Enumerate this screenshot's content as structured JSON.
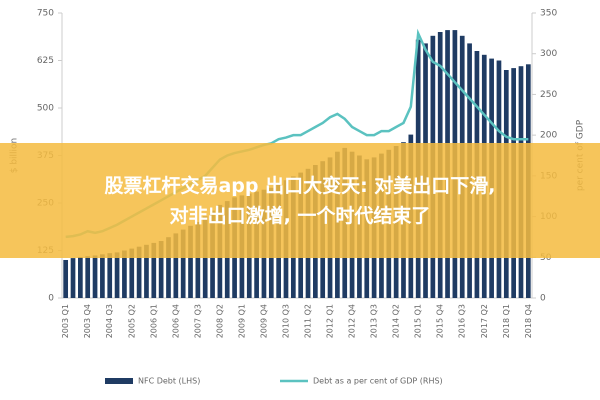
{
  "chart_data": {
    "type": "bar-line",
    "ylabel": "$ billion",
    "y2label": "per cent of GDP",
    "banner": [
      "股票杠杆交易app 出口大变天: 对美出口下滑,",
      "对非出口激增, 一个时代结束了"
    ],
    "categories": [
      "2003 Q1",
      null,
      null,
      "2003 Q4",
      null,
      null,
      "2004 Q3",
      null,
      null,
      "2005 Q2",
      null,
      null,
      "2006 Q1",
      null,
      null,
      "2006 Q4",
      null,
      null,
      "2007 Q3",
      null,
      null,
      "2008 Q2",
      null,
      null,
      "2009 Q1",
      null,
      null,
      "2009 Q4",
      null,
      null,
      "2010 Q3",
      null,
      null,
      "2011 Q2",
      null,
      null,
      "2012 Q1",
      null,
      null,
      "2012 Q4",
      null,
      null,
      "2013 Q3",
      null,
      null,
      "2014 Q2",
      null,
      null,
      "2015 Q1",
      null,
      null,
      "2015 Q4",
      null,
      null,
      "2016 Q3",
      null,
      null,
      "2017 Q2",
      null,
      null,
      "2018 Q1",
      null,
      null,
      "2018 Q4"
    ],
    "series": [
      {
        "name": "NFC Debt (LHS)",
        "color": "#1f3b63",
        "kind": "bar",
        "values": [
          100,
          105,
          108,
          110,
          112,
          115,
          118,
          120,
          125,
          130,
          135,
          140,
          145,
          150,
          160,
          170,
          180,
          190,
          200,
          215,
          230,
          245,
          255,
          265,
          270,
          275,
          280,
          285,
          290,
          300,
          310,
          320,
          330,
          340,
          350,
          360,
          370,
          385,
          395,
          385,
          375,
          365,
          370,
          380,
          390,
          400,
          410,
          430,
          680,
          670,
          690,
          700,
          705,
          705,
          690,
          670,
          650,
          640,
          630,
          625,
          600,
          605,
          610,
          615
        ]
      },
      {
        "name": "Debt as a per cent of GDP (RHS)",
        "color": "#5bc2c0",
        "kind": "line",
        "axis": "y2",
        "values": [
          75,
          76,
          78,
          82,
          80,
          82,
          86,
          90,
          95,
          100,
          105,
          110,
          115,
          120,
          125,
          130,
          135,
          140,
          145,
          150,
          160,
          170,
          175,
          178,
          180,
          182,
          185,
          188,
          190,
          195,
          197,
          200,
          200,
          205,
          210,
          215,
          222,
          226,
          220,
          210,
          205,
          200,
          200,
          205,
          205,
          210,
          215,
          235,
          325,
          305,
          290,
          285,
          275,
          265,
          255,
          245,
          235,
          225,
          215,
          205,
          198,
          195,
          195,
          195
        ]
      }
    ],
    "ylim": [
      0,
      750
    ],
    "yticks": [
      0,
      125,
      250,
      375,
      500,
      625,
      750
    ],
    "y2lim": [
      0,
      350
    ],
    "y2ticks": [
      0,
      50,
      100,
      150,
      200,
      250,
      300,
      350
    ]
  }
}
